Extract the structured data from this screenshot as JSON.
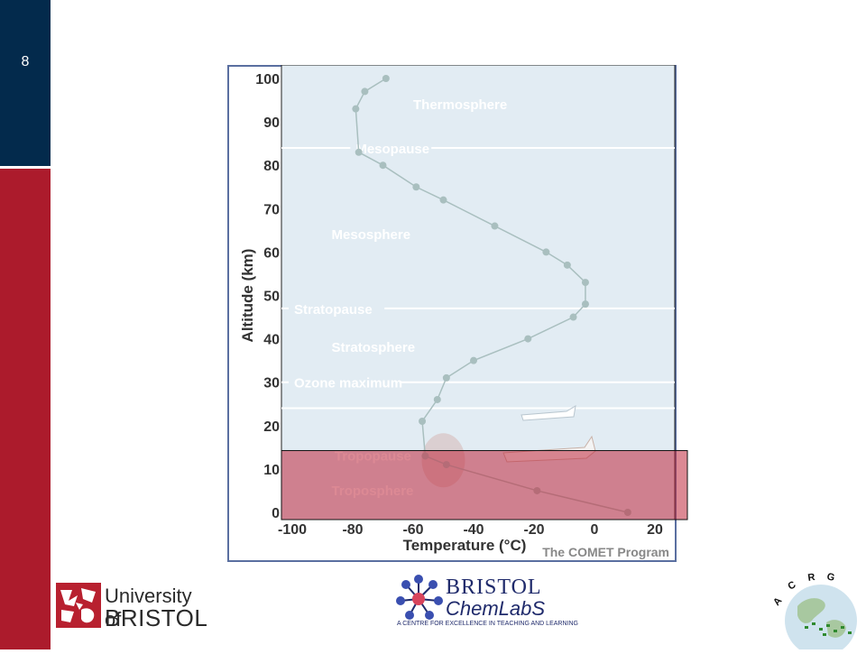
{
  "slide": {
    "number": "8"
  },
  "colors": {
    "navy": "#032a4c",
    "crimson": "#ac1b2c",
    "plot_bg": "#e2ecf3",
    "frame": "#5a6fa0",
    "profile_line": "#a9bfbf",
    "highlight": "#c0283c"
  },
  "chart_data": {
    "type": "line",
    "xlabel": "Temperature (°C)",
    "ylabel": "Altitude (km)",
    "credit": "The COMET Program",
    "xlim": [
      -100,
      20
    ],
    "ylim": [
      0,
      100
    ],
    "xticks": [
      -100,
      -80,
      -60,
      -40,
      -20,
      0,
      20
    ],
    "yticks": [
      0,
      10,
      20,
      30,
      40,
      50,
      60,
      70,
      80,
      90,
      100
    ],
    "series": [
      {
        "points": [
          [
            11,
            0
          ],
          [
            -19,
            5
          ],
          [
            -49,
            11
          ],
          [
            -56,
            13
          ],
          [
            -57,
            21
          ],
          [
            -52,
            26
          ],
          [
            -49,
            31
          ],
          [
            -40,
            35
          ],
          [
            -22,
            40
          ],
          [
            -7,
            45
          ],
          [
            -3,
            48
          ],
          [
            -3,
            53
          ],
          [
            -9,
            57
          ],
          [
            -16,
            60
          ],
          [
            -33,
            66
          ],
          [
            -50,
            72
          ],
          [
            -59,
            75
          ],
          [
            -70,
            80
          ],
          [
            -78,
            83
          ],
          [
            -79,
            93
          ],
          [
            -76,
            97
          ],
          [
            -69,
            100
          ]
        ]
      }
    ],
    "boundary_lines": [
      {
        "label": "Mesopause",
        "y": 84
      },
      {
        "label": "Stratopause",
        "y": 47
      },
      {
        "label": "Ozone maximum",
        "y": 30
      },
      {
        "label": "",
        "y": 24
      }
    ],
    "region_labels": [
      {
        "label": "Thermosphere",
        "x": -60,
        "y": 94
      },
      {
        "label": "Mesosphere",
        "x": -87,
        "y": 64
      },
      {
        "label": "Stratosphere",
        "x": -87,
        "y": 38
      },
      {
        "label": "Tropopause",
        "x": -86,
        "y": 13
      },
      {
        "label": "Troposphere",
        "x": -87,
        "y": 5
      }
    ],
    "highlight_band": {
      "y_from": 0,
      "y_to": 13
    },
    "grid": false,
    "legend": "none"
  }
}
